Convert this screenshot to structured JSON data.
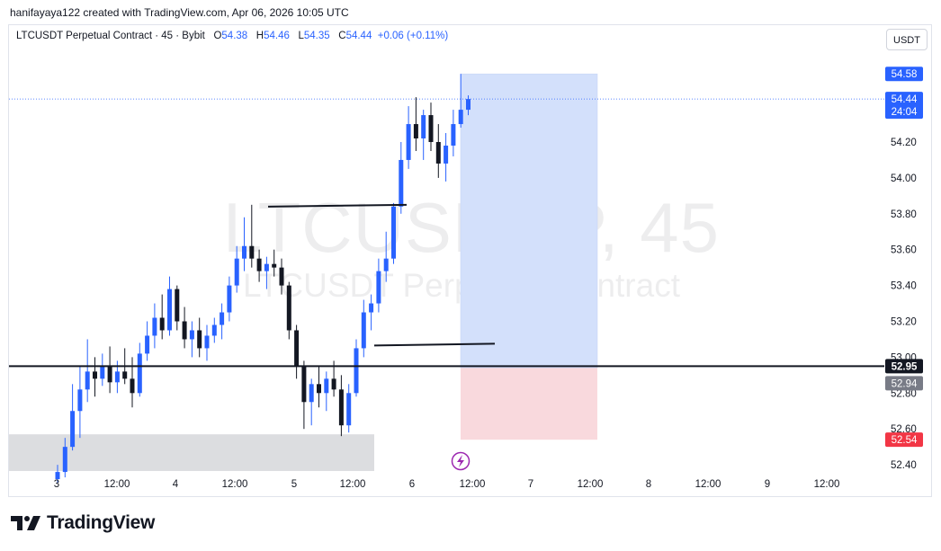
{
  "attribution": "hanifayaya122 created with TradingView.com, Apr 06, 2026 10:05 UTC",
  "header": {
    "symbol": "LTCUSDT Perpetual Contract · 45 · Bybit",
    "open_label": "O",
    "open": "54.38",
    "high_label": "H",
    "high": "54.46",
    "low_label": "L",
    "low": "54.35",
    "close_label": "C",
    "close": "54.44",
    "change": "+0.06 (+0.11%)"
  },
  "currency_button": "USDT",
  "watermark": {
    "symbol": "LTCUSDT.P, 45",
    "description": "LTCUSDT Perpetual Contract"
  },
  "price_tags": {
    "target": "54.58",
    "last": "54.44",
    "countdown": "24:04",
    "horizontal_line": "52.95",
    "entry": "52.94",
    "stop": "52.54"
  },
  "colors": {
    "bull": "#2962ff",
    "bear": "#131722",
    "target_zone": "#d3e0fb",
    "stop_zone": "#f9d9dd",
    "demand_zone": "#dcdde0",
    "stop_tag": "#f23645",
    "entry_tag": "#787b86"
  },
  "footer_brand": "TradingView",
  "chart_data": {
    "type": "candlestick",
    "y_axis": {
      "min": 52.3,
      "max": 54.7,
      "ticks": [
        "52.40",
        "52.60",
        "52.80",
        "53.00",
        "53.20",
        "53.40",
        "53.60",
        "53.80",
        "54.00",
        "54.20"
      ]
    },
    "x_axis": {
      "ticks": [
        "3",
        "12:00",
        "4",
        "12:00",
        "5",
        "12:00",
        "6",
        "12:00",
        "7",
        "12:00",
        "8",
        "12:00",
        "9",
        "12:00"
      ]
    },
    "candles": [
      {
        "o": 52.32,
        "h": 52.4,
        "l": 52.3,
        "c": 52.36
      },
      {
        "o": 52.36,
        "h": 52.55,
        "l": 52.33,
        "c": 52.5
      },
      {
        "o": 52.5,
        "h": 52.85,
        "l": 52.48,
        "c": 52.7
      },
      {
        "o": 52.7,
        "h": 52.95,
        "l": 52.55,
        "c": 52.82
      },
      {
        "o": 52.82,
        "h": 53.1,
        "l": 52.75,
        "c": 52.92
      },
      {
        "o": 52.92,
        "h": 53.0,
        "l": 52.78,
        "c": 52.88
      },
      {
        "o": 52.88,
        "h": 53.02,
        "l": 52.84,
        "c": 52.95
      },
      {
        "o": 52.95,
        "h": 53.06,
        "l": 52.8,
        "c": 52.86
      },
      {
        "o": 52.86,
        "h": 52.98,
        "l": 52.8,
        "c": 52.92
      },
      {
        "o": 52.92,
        "h": 53.05,
        "l": 52.85,
        "c": 52.88
      },
      {
        "o": 52.88,
        "h": 53.0,
        "l": 52.72,
        "c": 52.8
      },
      {
        "o": 52.8,
        "h": 53.08,
        "l": 52.78,
        "c": 53.02
      },
      {
        "o": 53.02,
        "h": 53.2,
        "l": 52.98,
        "c": 53.12
      },
      {
        "o": 53.12,
        "h": 53.3,
        "l": 53.05,
        "c": 53.22
      },
      {
        "o": 53.22,
        "h": 53.35,
        "l": 53.1,
        "c": 53.15
      },
      {
        "o": 53.15,
        "h": 53.45,
        "l": 53.12,
        "c": 53.38
      },
      {
        "o": 53.38,
        "h": 53.4,
        "l": 53.15,
        "c": 53.2
      },
      {
        "o": 53.2,
        "h": 53.28,
        "l": 53.05,
        "c": 53.1
      },
      {
        "o": 53.1,
        "h": 53.2,
        "l": 53.0,
        "c": 53.15
      },
      {
        "o": 53.15,
        "h": 53.22,
        "l": 53.0,
        "c": 53.05
      },
      {
        "o": 53.05,
        "h": 53.18,
        "l": 52.98,
        "c": 53.12
      },
      {
        "o": 53.12,
        "h": 53.22,
        "l": 53.08,
        "c": 53.18
      },
      {
        "o": 53.18,
        "h": 53.3,
        "l": 53.1,
        "c": 53.25
      },
      {
        "o": 53.25,
        "h": 53.45,
        "l": 53.2,
        "c": 53.4
      },
      {
        "o": 53.4,
        "h": 53.62,
        "l": 53.36,
        "c": 53.55
      },
      {
        "o": 53.55,
        "h": 53.78,
        "l": 53.48,
        "c": 53.62
      },
      {
        "o": 53.62,
        "h": 53.85,
        "l": 53.5,
        "c": 53.55
      },
      {
        "o": 53.55,
        "h": 53.6,
        "l": 53.42,
        "c": 53.48
      },
      {
        "o": 53.48,
        "h": 53.56,
        "l": 53.38,
        "c": 53.52
      },
      {
        "o": 53.52,
        "h": 53.6,
        "l": 53.45,
        "c": 53.5
      },
      {
        "o": 53.5,
        "h": 53.55,
        "l": 53.35,
        "c": 53.4
      },
      {
        "o": 53.4,
        "h": 53.42,
        "l": 53.1,
        "c": 53.15
      },
      {
        "o": 53.15,
        "h": 53.18,
        "l": 52.88,
        "c": 52.95
      },
      {
        "o": 52.95,
        "h": 52.98,
        "l": 52.6,
        "c": 52.75
      },
      {
        "o": 52.75,
        "h": 52.88,
        "l": 52.62,
        "c": 52.85
      },
      {
        "o": 52.85,
        "h": 52.95,
        "l": 52.72,
        "c": 52.8
      },
      {
        "o": 52.8,
        "h": 52.92,
        "l": 52.7,
        "c": 52.88
      },
      {
        "o": 52.88,
        "h": 52.98,
        "l": 52.78,
        "c": 52.82
      },
      {
        "o": 52.82,
        "h": 52.9,
        "l": 52.56,
        "c": 52.62
      },
      {
        "o": 52.62,
        "h": 52.85,
        "l": 52.58,
        "c": 52.8
      },
      {
        "o": 52.8,
        "h": 53.1,
        "l": 52.78,
        "c": 53.05
      },
      {
        "o": 53.05,
        "h": 53.32,
        "l": 53.0,
        "c": 53.25
      },
      {
        "o": 53.25,
        "h": 53.35,
        "l": 53.15,
        "c": 53.3
      },
      {
        "o": 53.3,
        "h": 53.55,
        "l": 53.25,
        "c": 53.48
      },
      {
        "o": 53.48,
        "h": 53.7,
        "l": 53.42,
        "c": 53.55
      },
      {
        "o": 53.55,
        "h": 53.86,
        "l": 53.52,
        "c": 53.84
      },
      {
        "o": 53.84,
        "h": 54.2,
        "l": 53.8,
        "c": 54.1
      },
      {
        "o": 54.1,
        "h": 54.4,
        "l": 54.05,
        "c": 54.3
      },
      {
        "o": 54.3,
        "h": 54.45,
        "l": 54.15,
        "c": 54.22
      },
      {
        "o": 54.22,
        "h": 54.38,
        "l": 54.1,
        "c": 54.35
      },
      {
        "o": 54.35,
        "h": 54.42,
        "l": 54.15,
        "c": 54.2
      },
      {
        "o": 54.2,
        "h": 54.3,
        "l": 54.0,
        "c": 54.08
      },
      {
        "o": 54.08,
        "h": 54.25,
        "l": 53.98,
        "c": 54.18
      },
      {
        "o": 54.18,
        "h": 54.38,
        "l": 54.12,
        "c": 54.3
      },
      {
        "o": 54.3,
        "h": 54.58,
        "l": 54.28,
        "c": 54.38
      },
      {
        "o": 54.38,
        "h": 54.46,
        "l": 54.35,
        "c": 54.44
      }
    ],
    "levels": {
      "resistance_line": 53.85,
      "support_line": 53.07,
      "horizontal_line": 52.95
    },
    "position": {
      "target": 54.58,
      "entry": 52.94,
      "stop": 52.54
    },
    "zone": {
      "top": 52.57,
      "bottom": 52.3
    }
  }
}
